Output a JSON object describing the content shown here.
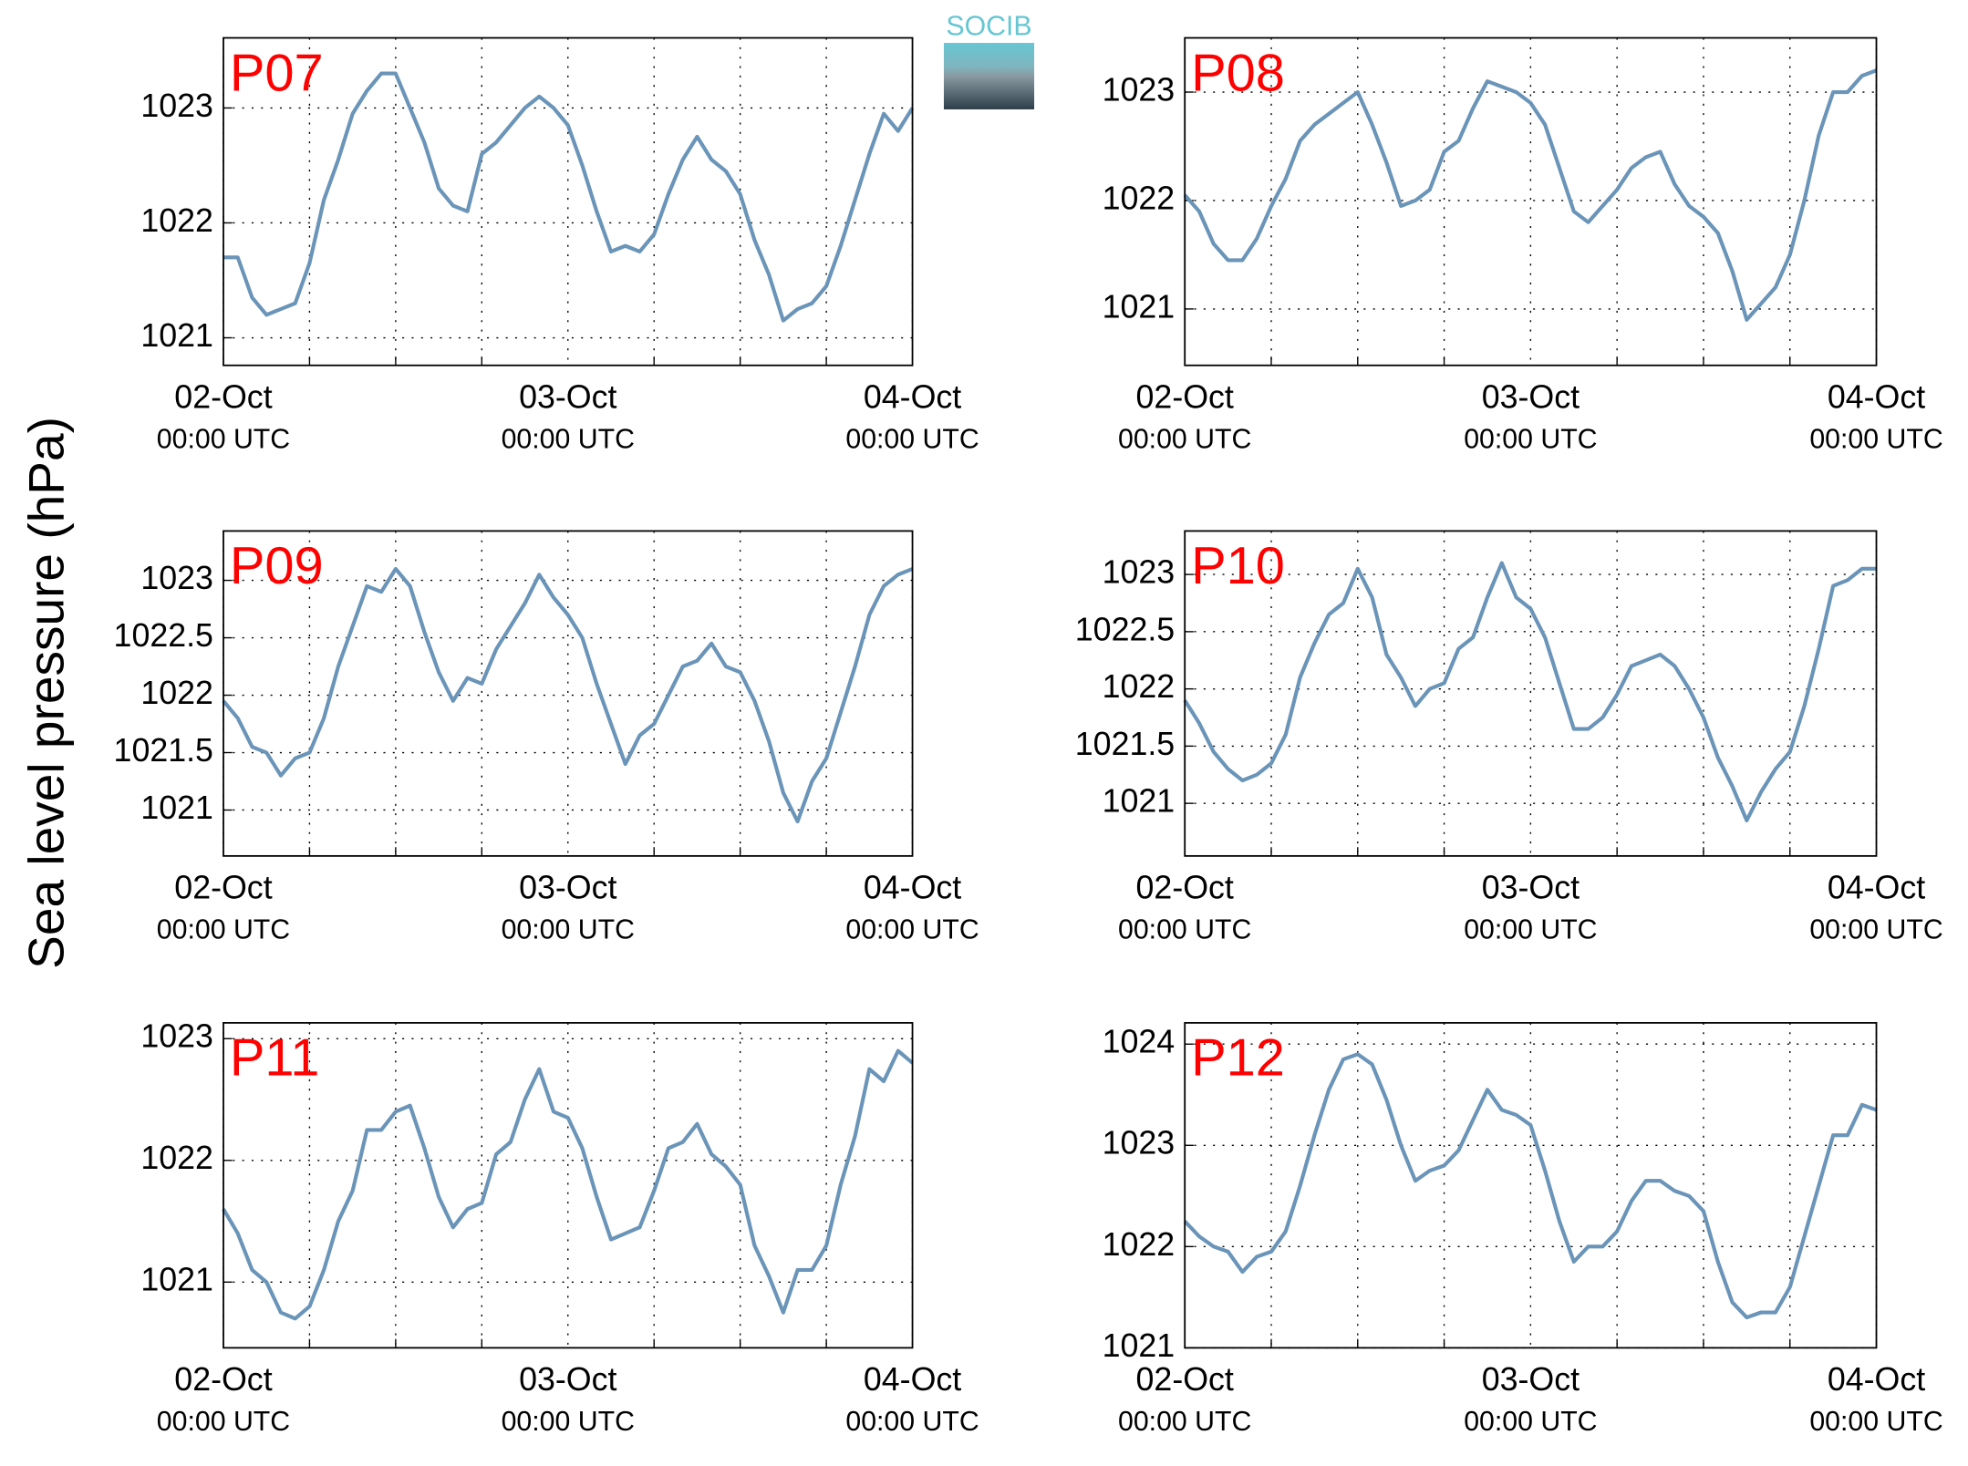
{
  "figure": {
    "ylabel": "Sea level pressure (hPa)",
    "logo": "SOCIB"
  },
  "chart_data": [
    {
      "type": "line",
      "title": "P07",
      "color": "#6a94b8",
      "xlim": [
        0,
        48
      ],
      "ylim": [
        1020.76,
        1023.61
      ],
      "yticks": [
        1021,
        1022,
        1023
      ],
      "xticks": [
        {
          "value": 0,
          "label": "02-Oct",
          "sublabel": "00:00 UTC"
        },
        {
          "value": 24,
          "label": "03-Oct",
          "sublabel": "00:00 UTC"
        },
        {
          "value": 48,
          "label": "04-Oct",
          "sublabel": "00:00 UTC"
        }
      ],
      "xminor": [
        6,
        12,
        18,
        30,
        36,
        42
      ],
      "grid": true,
      "x": [
        0,
        1,
        2,
        3,
        4,
        5,
        6,
        7,
        8,
        9,
        10,
        11,
        12,
        13,
        14,
        15,
        16,
        17,
        18,
        19,
        20,
        21,
        22,
        23,
        24,
        25,
        26,
        27,
        28,
        29,
        30,
        31,
        32,
        33,
        34,
        35,
        36,
        37,
        38,
        39,
        40,
        41,
        42,
        43,
        44,
        45,
        46,
        47,
        48
      ],
      "values": [
        1021.7,
        1021.7,
        1021.35,
        1021.2,
        1021.25,
        1021.3,
        1021.65,
        1022.2,
        1022.55,
        1022.95,
        1023.15,
        1023.3,
        1023.3,
        1023.0,
        1022.7,
        1022.3,
        1022.15,
        1022.1,
        1022.6,
        1022.7,
        1022.85,
        1023.0,
        1023.1,
        1023.0,
        1022.85,
        1022.5,
        1022.1,
        1021.75,
        1021.8,
        1021.75,
        1021.9,
        1022.25,
        1022.55,
        1022.75,
        1022.55,
        1022.45,
        1022.25,
        1021.85,
        1021.55,
        1021.15,
        1021.25,
        1021.3,
        1021.45,
        1021.8,
        1022.2,
        1022.6,
        1022.95,
        1022.8,
        1023.0
      ]
    },
    {
      "type": "line",
      "title": "P08",
      "color": "#6a94b8",
      "xlim": [
        0,
        48
      ],
      "ylim": [
        1020.48,
        1023.5
      ],
      "yticks": [
        1021,
        1022,
        1023
      ],
      "xticks": [
        {
          "value": 0,
          "label": "02-Oct",
          "sublabel": "00:00 UTC"
        },
        {
          "value": 24,
          "label": "03-Oct",
          "sublabel": "00:00 UTC"
        },
        {
          "value": 48,
          "label": "04-Oct",
          "sublabel": "00:00 UTC"
        }
      ],
      "xminor": [
        6,
        12,
        18,
        30,
        36,
        42
      ],
      "grid": true,
      "x": [
        0,
        1,
        2,
        3,
        4,
        5,
        6,
        7,
        8,
        9,
        10,
        11,
        12,
        13,
        14,
        15,
        16,
        17,
        18,
        19,
        20,
        21,
        22,
        23,
        24,
        25,
        26,
        27,
        28,
        29,
        30,
        31,
        32,
        33,
        34,
        35,
        36,
        37,
        38,
        39,
        40,
        41,
        42,
        43,
        44,
        45,
        46,
        47,
        48
      ],
      "values": [
        1022.05,
        1021.9,
        1021.6,
        1021.45,
        1021.45,
        1021.65,
        1021.95,
        1022.2,
        1022.55,
        1022.7,
        1022.8,
        1022.9,
        1023.0,
        1022.7,
        1022.35,
        1021.95,
        1022.0,
        1022.1,
        1022.45,
        1022.55,
        1022.85,
        1023.1,
        1023.05,
        1023.0,
        1022.9,
        1022.7,
        1022.3,
        1021.9,
        1021.8,
        1021.95,
        1022.1,
        1022.3,
        1022.4,
        1022.45,
        1022.15,
        1021.95,
        1021.85,
        1021.7,
        1021.35,
        1020.9,
        1021.05,
        1021.2,
        1021.5,
        1022.0,
        1022.6,
        1023.0,
        1023.0,
        1023.15,
        1023.2
      ]
    },
    {
      "type": "line",
      "title": "P09",
      "color": "#6a94b8",
      "xlim": [
        0,
        48
      ],
      "ylim": [
        1020.6,
        1023.43
      ],
      "yticks": [
        1021,
        1021.5,
        1022,
        1022.5,
        1023
      ],
      "xticks": [
        {
          "value": 0,
          "label": "02-Oct",
          "sublabel": "00:00 UTC"
        },
        {
          "value": 24,
          "label": "03-Oct",
          "sublabel": "00:00 UTC"
        },
        {
          "value": 48,
          "label": "04-Oct",
          "sublabel": "00:00 UTC"
        }
      ],
      "xminor": [
        6,
        12,
        18,
        30,
        36,
        42
      ],
      "grid": true,
      "x": [
        0,
        1,
        2,
        3,
        4,
        5,
        6,
        7,
        8,
        9,
        10,
        11,
        12,
        13,
        14,
        15,
        16,
        17,
        18,
        19,
        20,
        21,
        22,
        23,
        24,
        25,
        26,
        27,
        28,
        29,
        30,
        31,
        32,
        33,
        34,
        35,
        36,
        37,
        38,
        39,
        40,
        41,
        42,
        43,
        44,
        45,
        46,
        47,
        48
      ],
      "values": [
        1021.95,
        1021.8,
        1021.55,
        1021.5,
        1021.3,
        1021.45,
        1021.5,
        1021.8,
        1022.25,
        1022.6,
        1022.95,
        1022.9,
        1023.1,
        1022.95,
        1022.55,
        1022.2,
        1021.95,
        1022.15,
        1022.1,
        1022.4,
        1022.6,
        1022.8,
        1023.05,
        1022.85,
        1022.7,
        1022.5,
        1022.1,
        1021.75,
        1021.4,
        1021.65,
        1021.75,
        1022.0,
        1022.25,
        1022.3,
        1022.45,
        1022.25,
        1022.2,
        1021.95,
        1021.6,
        1021.15,
        1020.9,
        1021.25,
        1021.45,
        1021.85,
        1022.25,
        1022.7,
        1022.95,
        1023.05,
        1023.1
      ]
    },
    {
      "type": "line",
      "title": "P10",
      "color": "#6a94b8",
      "xlim": [
        0,
        48
      ],
      "ylim": [
        1020.54,
        1023.38
      ],
      "yticks": [
        1021,
        1021.5,
        1022,
        1022.5,
        1023
      ],
      "xticks": [
        {
          "value": 0,
          "label": "02-Oct",
          "sublabel": "00:00 UTC"
        },
        {
          "value": 24,
          "label": "03-Oct",
          "sublabel": "00:00 UTC"
        },
        {
          "value": 48,
          "label": "04-Oct",
          "sublabel": "00:00 UTC"
        }
      ],
      "xminor": [
        6,
        12,
        18,
        30,
        36,
        42
      ],
      "grid": true,
      "x": [
        0,
        1,
        2,
        3,
        4,
        5,
        6,
        7,
        8,
        9,
        10,
        11,
        12,
        13,
        14,
        15,
        16,
        17,
        18,
        19,
        20,
        21,
        22,
        23,
        24,
        25,
        26,
        27,
        28,
        29,
        30,
        31,
        32,
        33,
        34,
        35,
        36,
        37,
        38,
        39,
        40,
        41,
        42,
        43,
        44,
        45,
        46,
        47,
        48
      ],
      "values": [
        1021.9,
        1021.7,
        1021.45,
        1021.3,
        1021.2,
        1021.25,
        1021.35,
        1021.6,
        1022.1,
        1022.4,
        1022.65,
        1022.75,
        1023.05,
        1022.8,
        1022.3,
        1022.1,
        1021.85,
        1022.0,
        1022.05,
        1022.35,
        1022.45,
        1022.8,
        1023.1,
        1022.8,
        1022.7,
        1022.45,
        1022.05,
        1021.65,
        1021.65,
        1021.75,
        1021.95,
        1022.2,
        1022.25,
        1022.3,
        1022.2,
        1022.0,
        1021.75,
        1021.4,
        1021.15,
        1020.85,
        1021.1,
        1021.3,
        1021.45,
        1021.85,
        1022.35,
        1022.9,
        1022.95,
        1023.05,
        1023.05
      ]
    },
    {
      "type": "line",
      "title": "P11",
      "color": "#6a94b8",
      "xlim": [
        0,
        48
      ],
      "ylim": [
        1020.46,
        1023.13
      ],
      "yticks": [
        1021,
        1022,
        1023
      ],
      "xticks": [
        {
          "value": 0,
          "label": "02-Oct",
          "sublabel": "00:00 UTC"
        },
        {
          "value": 24,
          "label": "03-Oct",
          "sublabel": "00:00 UTC"
        },
        {
          "value": 48,
          "label": "04-Oct",
          "sublabel": "00:00 UTC"
        }
      ],
      "xminor": [
        6,
        12,
        18,
        30,
        36,
        42
      ],
      "grid": true,
      "x": [
        0,
        1,
        2,
        3,
        4,
        5,
        6,
        7,
        8,
        9,
        10,
        11,
        12,
        13,
        14,
        15,
        16,
        17,
        18,
        19,
        20,
        21,
        22,
        23,
        24,
        25,
        26,
        27,
        28,
        29,
        30,
        31,
        32,
        33,
        34,
        35,
        36,
        37,
        38,
        39,
        40,
        41,
        42,
        43,
        44,
        45,
        46,
        47,
        48
      ],
      "values": [
        1021.6,
        1021.4,
        1021.1,
        1021.0,
        1020.75,
        1020.7,
        1020.8,
        1021.1,
        1021.5,
        1021.75,
        1022.25,
        1022.25,
        1022.4,
        1022.45,
        1022.1,
        1021.7,
        1021.45,
        1021.6,
        1021.65,
        1022.05,
        1022.15,
        1022.5,
        1022.75,
        1022.4,
        1022.35,
        1022.1,
        1021.7,
        1021.35,
        1021.4,
        1021.45,
        1021.75,
        1022.1,
        1022.15,
        1022.3,
        1022.05,
        1021.95,
        1021.8,
        1021.3,
        1021.05,
        1020.75,
        1021.1,
        1021.1,
        1021.3,
        1021.8,
        1022.2,
        1022.75,
        1022.65,
        1022.9,
        1022.8
      ]
    },
    {
      "type": "line",
      "title": "P12",
      "color": "#6a94b8",
      "xlim": [
        0,
        48
      ],
      "ylim": [
        1021,
        1024.21
      ],
      "yticks": [
        1021,
        1022,
        1023,
        1024
      ],
      "xticks": [
        {
          "value": 0,
          "label": "02-Oct",
          "sublabel": "00:00 UTC"
        },
        {
          "value": 24,
          "label": "03-Oct",
          "sublabel": "00:00 UTC"
        },
        {
          "value": 48,
          "label": "04-Oct",
          "sublabel": "00:00 UTC"
        }
      ],
      "xminor": [
        6,
        12,
        18,
        30,
        36,
        42
      ],
      "grid": true,
      "x": [
        0,
        1,
        2,
        3,
        4,
        5,
        6,
        7,
        8,
        9,
        10,
        11,
        12,
        13,
        14,
        15,
        16,
        17,
        18,
        19,
        20,
        21,
        22,
        23,
        24,
        25,
        26,
        27,
        28,
        29,
        30,
        31,
        32,
        33,
        34,
        35,
        36,
        37,
        38,
        39,
        40,
        41,
        42,
        43,
        44,
        45,
        46,
        47,
        48
      ],
      "values": [
        1022.25,
        1022.1,
        1022.0,
        1021.95,
        1021.75,
        1021.9,
        1021.95,
        1022.15,
        1022.6,
        1023.1,
        1023.55,
        1023.85,
        1023.9,
        1023.8,
        1023.45,
        1023.0,
        1022.65,
        1022.75,
        1022.8,
        1022.95,
        1023.25,
        1023.55,
        1023.35,
        1023.3,
        1023.2,
        1022.75,
        1022.25,
        1021.85,
        1022.0,
        1022.0,
        1022.15,
        1022.45,
        1022.65,
        1022.65,
        1022.55,
        1022.5,
        1022.35,
        1021.85,
        1021.45,
        1021.3,
        1021.35,
        1021.35,
        1021.6,
        1022.1,
        1022.6,
        1023.1,
        1023.1,
        1023.4,
        1023.35
      ]
    }
  ]
}
